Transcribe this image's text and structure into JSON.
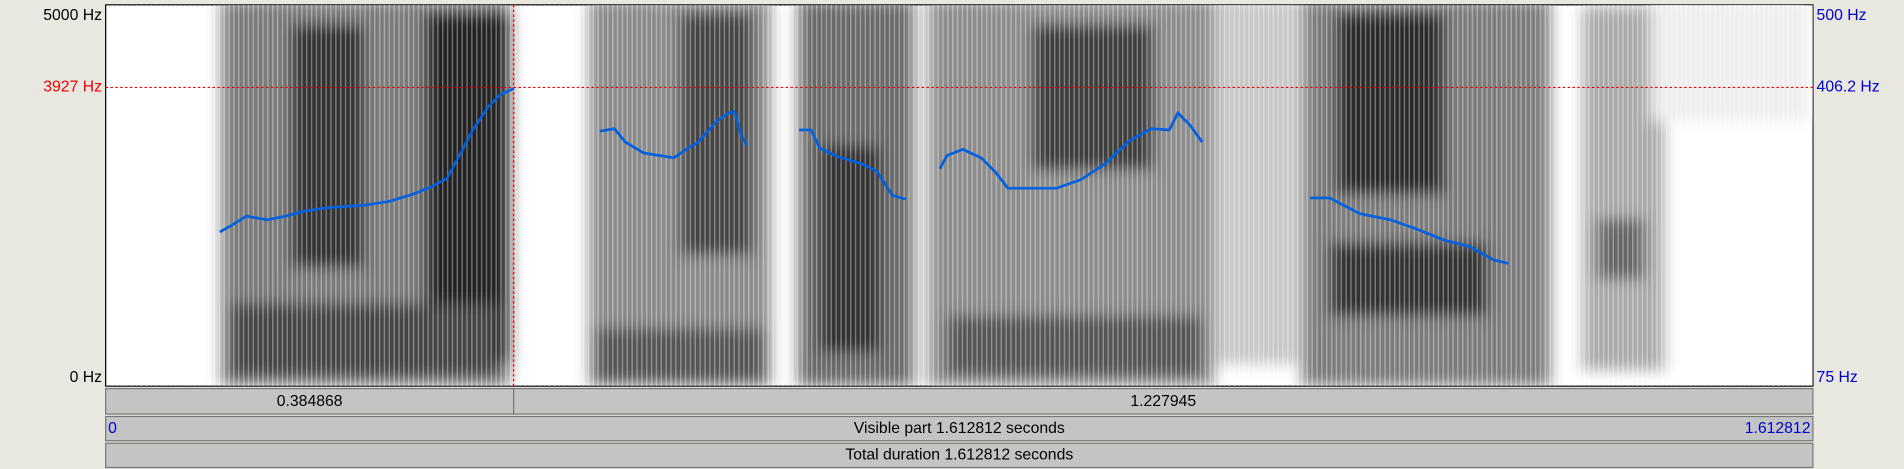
{
  "left_axis": {
    "top": "5000 Hz",
    "cursor": "3927 Hz",
    "bottom": "0 Hz"
  },
  "right_axis": {
    "top": "500 Hz",
    "cursor": "406.2 Hz",
    "bottom": "75 Hz"
  },
  "selection_bar": {
    "left": "0.384868",
    "right": "1.227945"
  },
  "visible_bar": {
    "start": "0",
    "label": "Visible part 1.612812 seconds",
    "end": "1.612812"
  },
  "total_bar": {
    "label": "Total duration 1.612812 seconds"
  }
}
